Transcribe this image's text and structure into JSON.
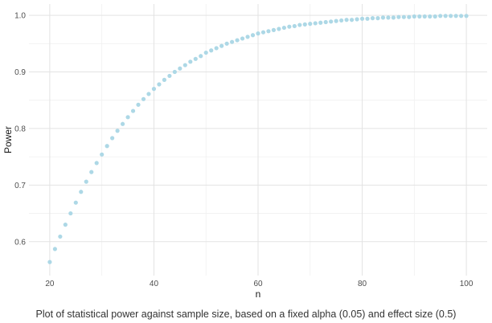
{
  "chart_data": {
    "type": "scatter",
    "title": "",
    "xlabel": "n",
    "ylabel": "Power",
    "xlim": [
      16,
      104
    ],
    "ylim": [
      0.54,
      1.02
    ],
    "x_ticks": [
      20,
      40,
      60,
      80,
      100
    ],
    "y_ticks": [
      0.6,
      0.7,
      0.8,
      0.9,
      1.0
    ],
    "x_tick_labels": [
      "20",
      "40",
      "60",
      "80",
      "100"
    ],
    "y_tick_labels": [
      "0.6",
      "0.7",
      "0.8",
      "0.9",
      "1.0"
    ],
    "grid": true,
    "legend": "none",
    "point_color": "#add8e6",
    "series": [
      {
        "x": [
          20,
          21,
          22,
          23,
          24,
          25,
          26,
          27,
          28,
          29,
          30,
          31,
          32,
          33,
          34,
          35,
          36,
          37,
          38,
          39,
          40,
          41,
          42,
          43,
          44,
          45,
          46,
          47,
          48,
          49,
          50,
          51,
          52,
          53,
          54,
          55,
          56,
          57,
          58,
          59,
          60,
          61,
          62,
          63,
          64,
          65,
          66,
          67,
          68,
          69,
          70,
          71,
          72,
          73,
          74,
          75,
          76,
          77,
          78,
          79,
          80,
          81,
          82,
          83,
          84,
          85,
          86,
          87,
          88,
          89,
          90,
          91,
          92,
          93,
          94,
          95,
          96,
          97,
          98,
          99,
          100
        ],
        "y": [
          0.564,
          0.587,
          0.609,
          0.63,
          0.65,
          0.669,
          0.688,
          0.706,
          0.723,
          0.739,
          0.754,
          0.769,
          0.783,
          0.796,
          0.808,
          0.82,
          0.831,
          0.842,
          0.852,
          0.861,
          0.87,
          0.878,
          0.886,
          0.893,
          0.9,
          0.906,
          0.912,
          0.918,
          0.923,
          0.928,
          0.934,
          0.938,
          0.942,
          0.946,
          0.95,
          0.953,
          0.956,
          0.959,
          0.962,
          0.965,
          0.968,
          0.97,
          0.972,
          0.974,
          0.976,
          0.978,
          0.98,
          0.981,
          0.983,
          0.984,
          0.985,
          0.986,
          0.987,
          0.988,
          0.989,
          0.99,
          0.991,
          0.992,
          0.992,
          0.993,
          0.994,
          0.994,
          0.995,
          0.995,
          0.996,
          0.996,
          0.996,
          0.997,
          0.997,
          0.997,
          0.998,
          0.998,
          0.998,
          0.998,
          0.998,
          0.999,
          0.999,
          0.999,
          0.999,
          0.999,
          0.999
        ]
      }
    ]
  },
  "caption": "Plot of statistical power against sample size, based on a fixed alpha (0.05) and effect size (0.5)"
}
